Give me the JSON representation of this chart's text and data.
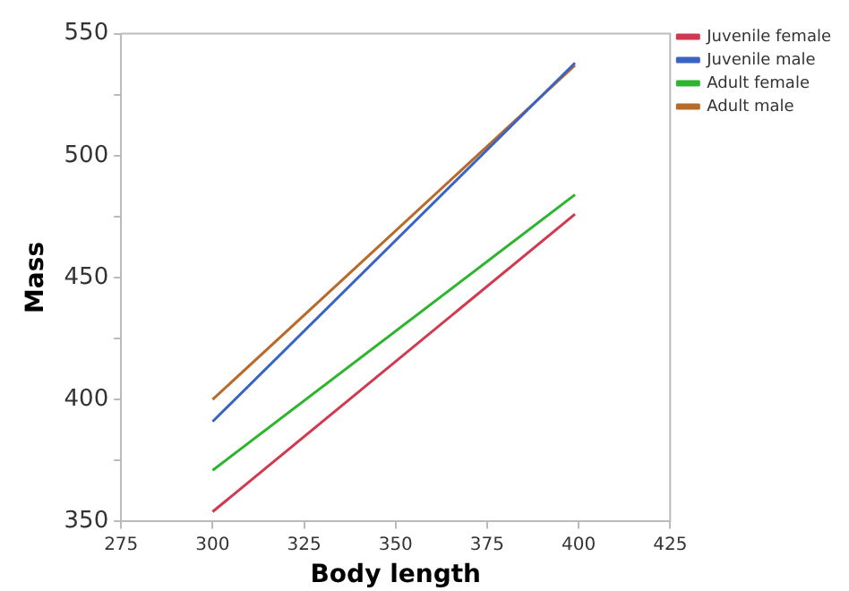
{
  "chart_data": {
    "type": "line",
    "xlabel": "Body length",
    "ylabel": "Mass",
    "x": [
      300,
      399
    ],
    "series": [
      {
        "name": "Juvenile female",
        "color": "#d0394f",
        "values": [
          354,
          476
        ]
      },
      {
        "name": "Juvenile male",
        "color": "#3a64c4",
        "values": [
          391,
          538
        ]
      },
      {
        "name": "Adult female",
        "color": "#2eb52e",
        "values": [
          371,
          484
        ]
      },
      {
        "name": "Adult male",
        "color": "#b86a2a",
        "values": [
          400,
          537
        ]
      }
    ],
    "xlim": [
      275,
      425
    ],
    "xticks": [
      275,
      300,
      325,
      350,
      375,
      400,
      425
    ],
    "ylim": [
      350,
      550
    ],
    "yticks": [
      350,
      {
        "value": 375,
        "label": null
      },
      400,
      {
        "value": 425,
        "label": null
      },
      450,
      {
        "value": 475,
        "label": null
      },
      500,
      {
        "value": 525,
        "label": null
      },
      550
    ],
    "grid": false,
    "legend": "top right",
    "marker": "none",
    "line_style": "solid"
  }
}
